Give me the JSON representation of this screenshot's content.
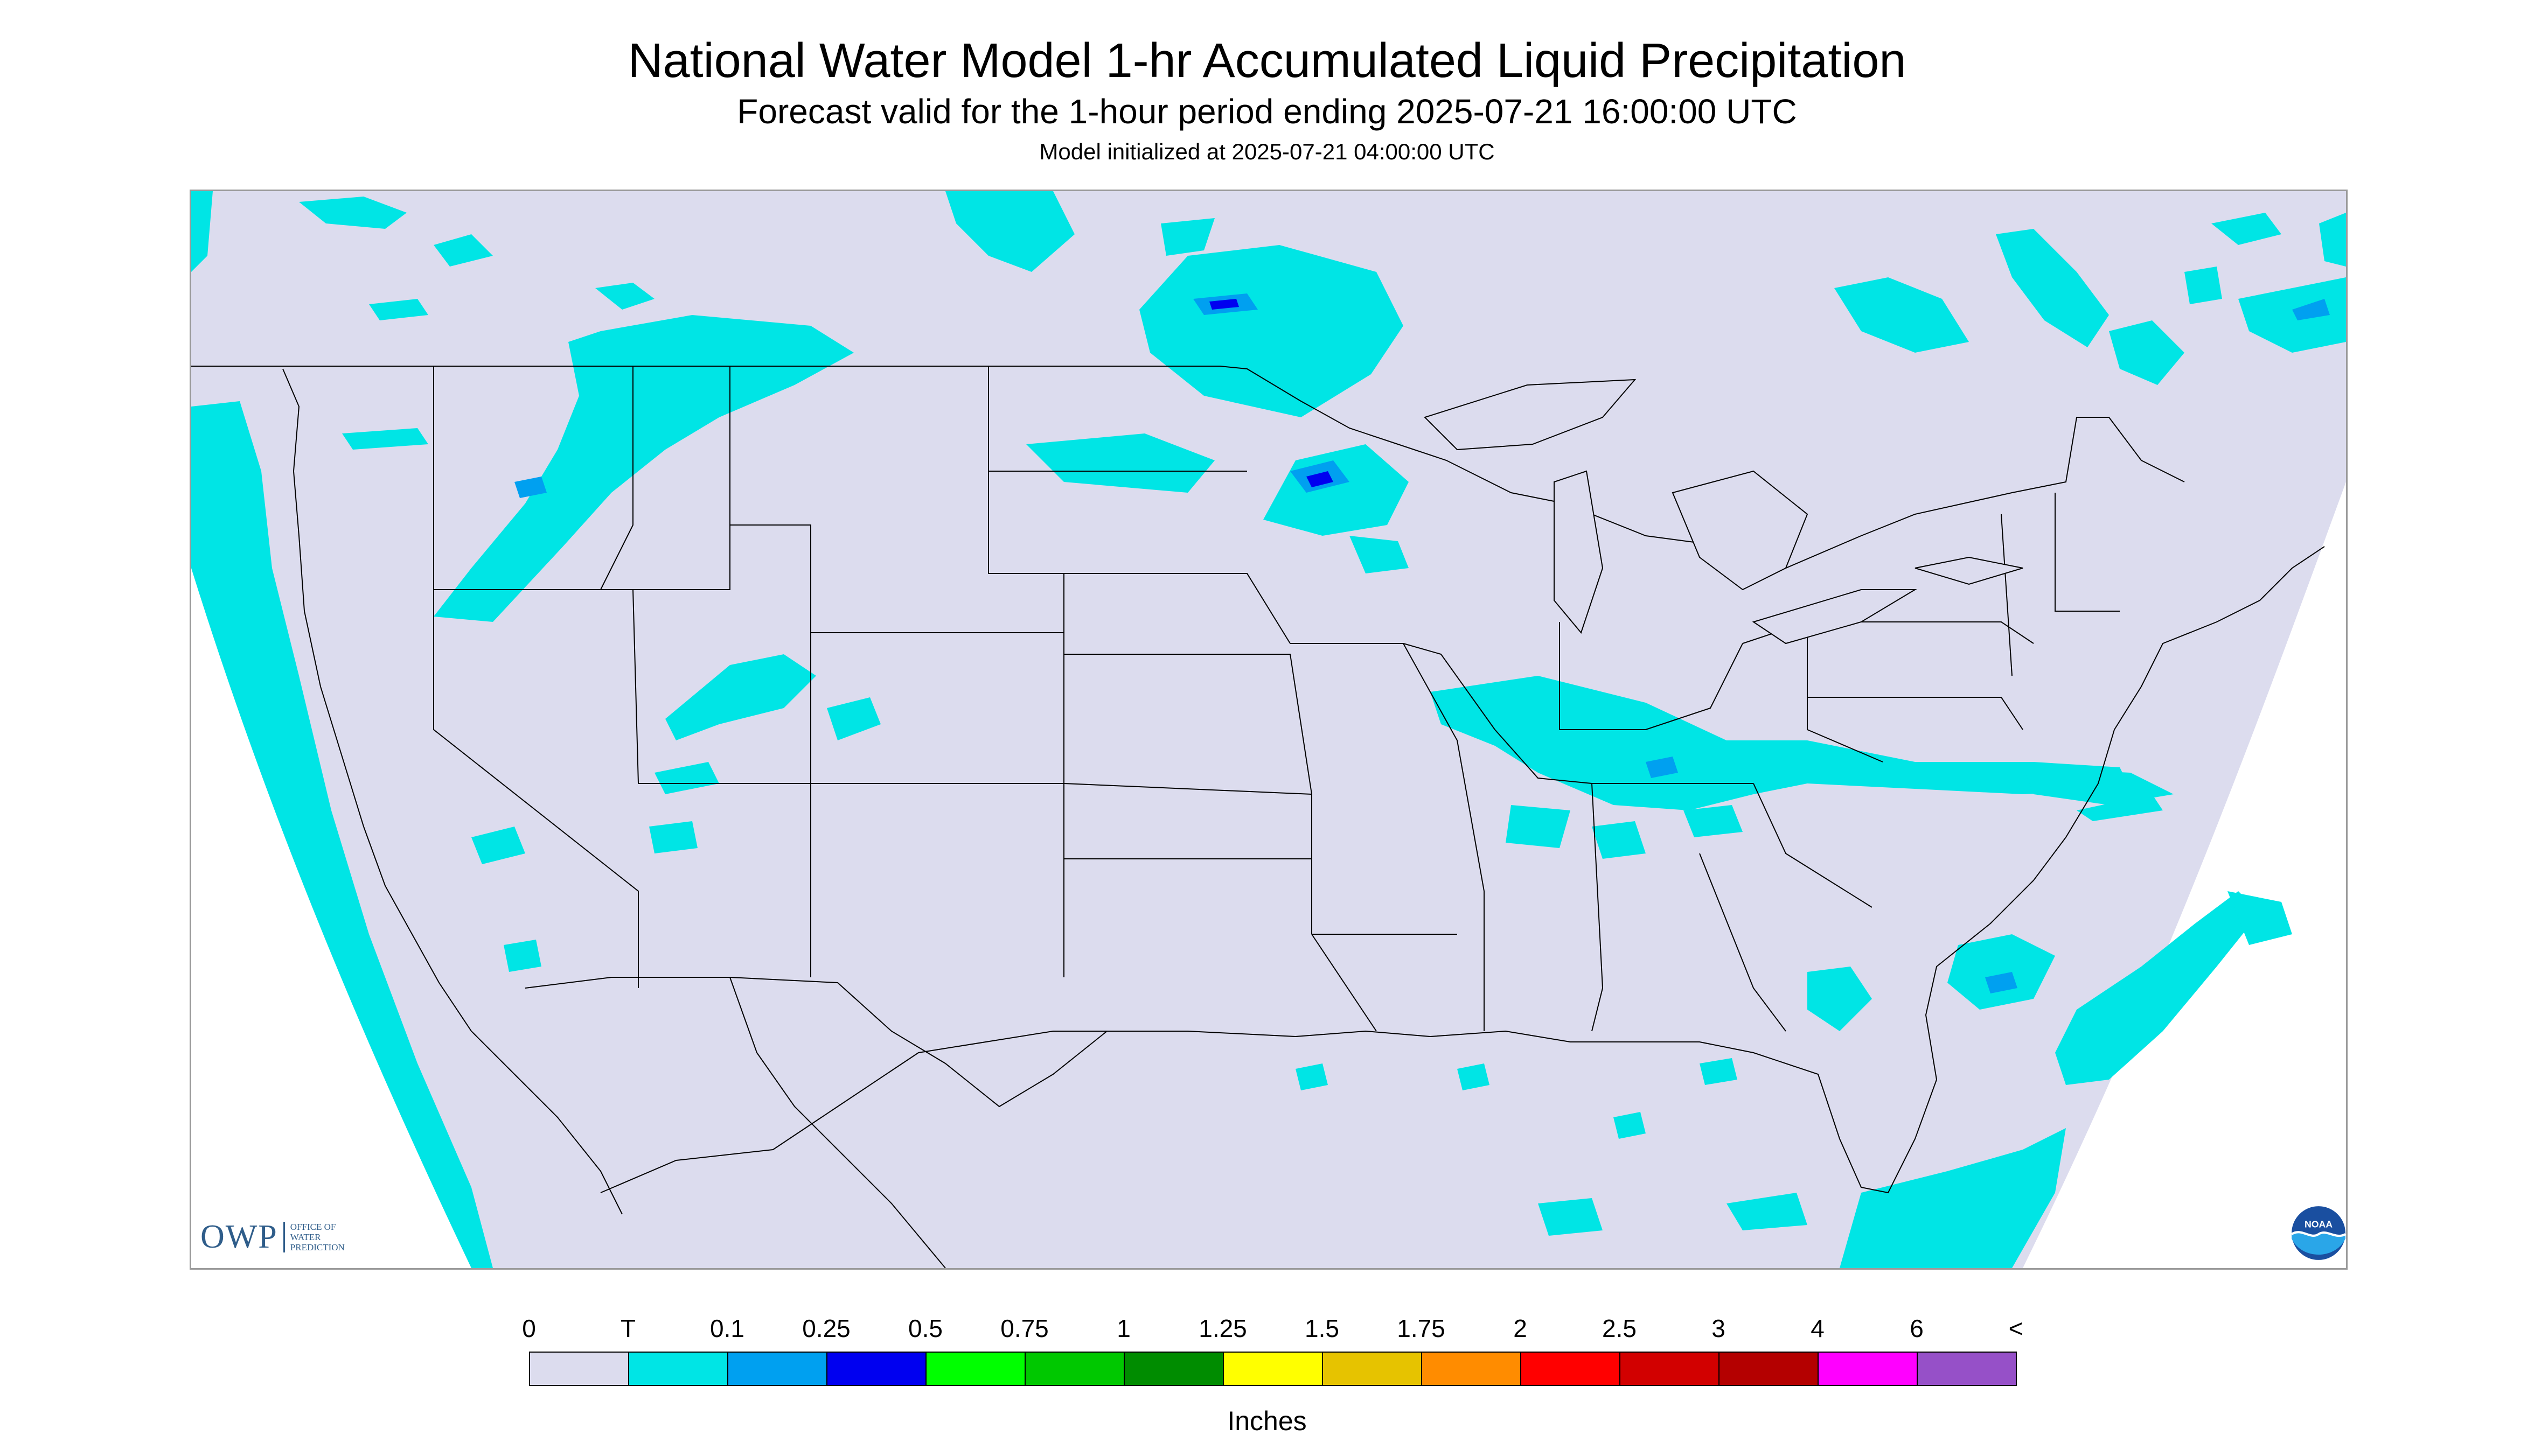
{
  "header": {
    "title": "National Water Model 1-hr Accumulated Liquid Precipitation",
    "subtitle": "Forecast valid for the 1-hour period ending 2025-07-21 16:00:00 UTC",
    "init_line": "Model initialized at 2025-07-21 04:00:00 UTC"
  },
  "logos": {
    "owp_mark": "OWP",
    "owp_small": [
      "OFFICE OF",
      "WATER",
      "PREDICTION"
    ],
    "noaa_text": "NOAA"
  },
  "legend": {
    "labels": [
      "0",
      "T",
      "0.1",
      "0.25",
      "0.5",
      "0.75",
      "1",
      "1.25",
      "1.5",
      "1.75",
      "2",
      "2.5",
      "3",
      "4",
      "6",
      "<"
    ],
    "colors": [
      "#dcdcee",
      "#00e5e5",
      "#00a0f0",
      "#0000f0",
      "#00ff00",
      "#00c800",
      "#008c00",
      "#ffff00",
      "#e6c300",
      "#ff8c00",
      "#ff0000",
      "#d20000",
      "#b40000",
      "#ff00ff",
      "#9650c8"
    ],
    "units": "Inches"
  },
  "map": {
    "domain_color": "#dcdcee",
    "trace_color": "#00e5e5",
    "light_blue": "#00a0f0",
    "blue": "#0000f0"
  }
}
